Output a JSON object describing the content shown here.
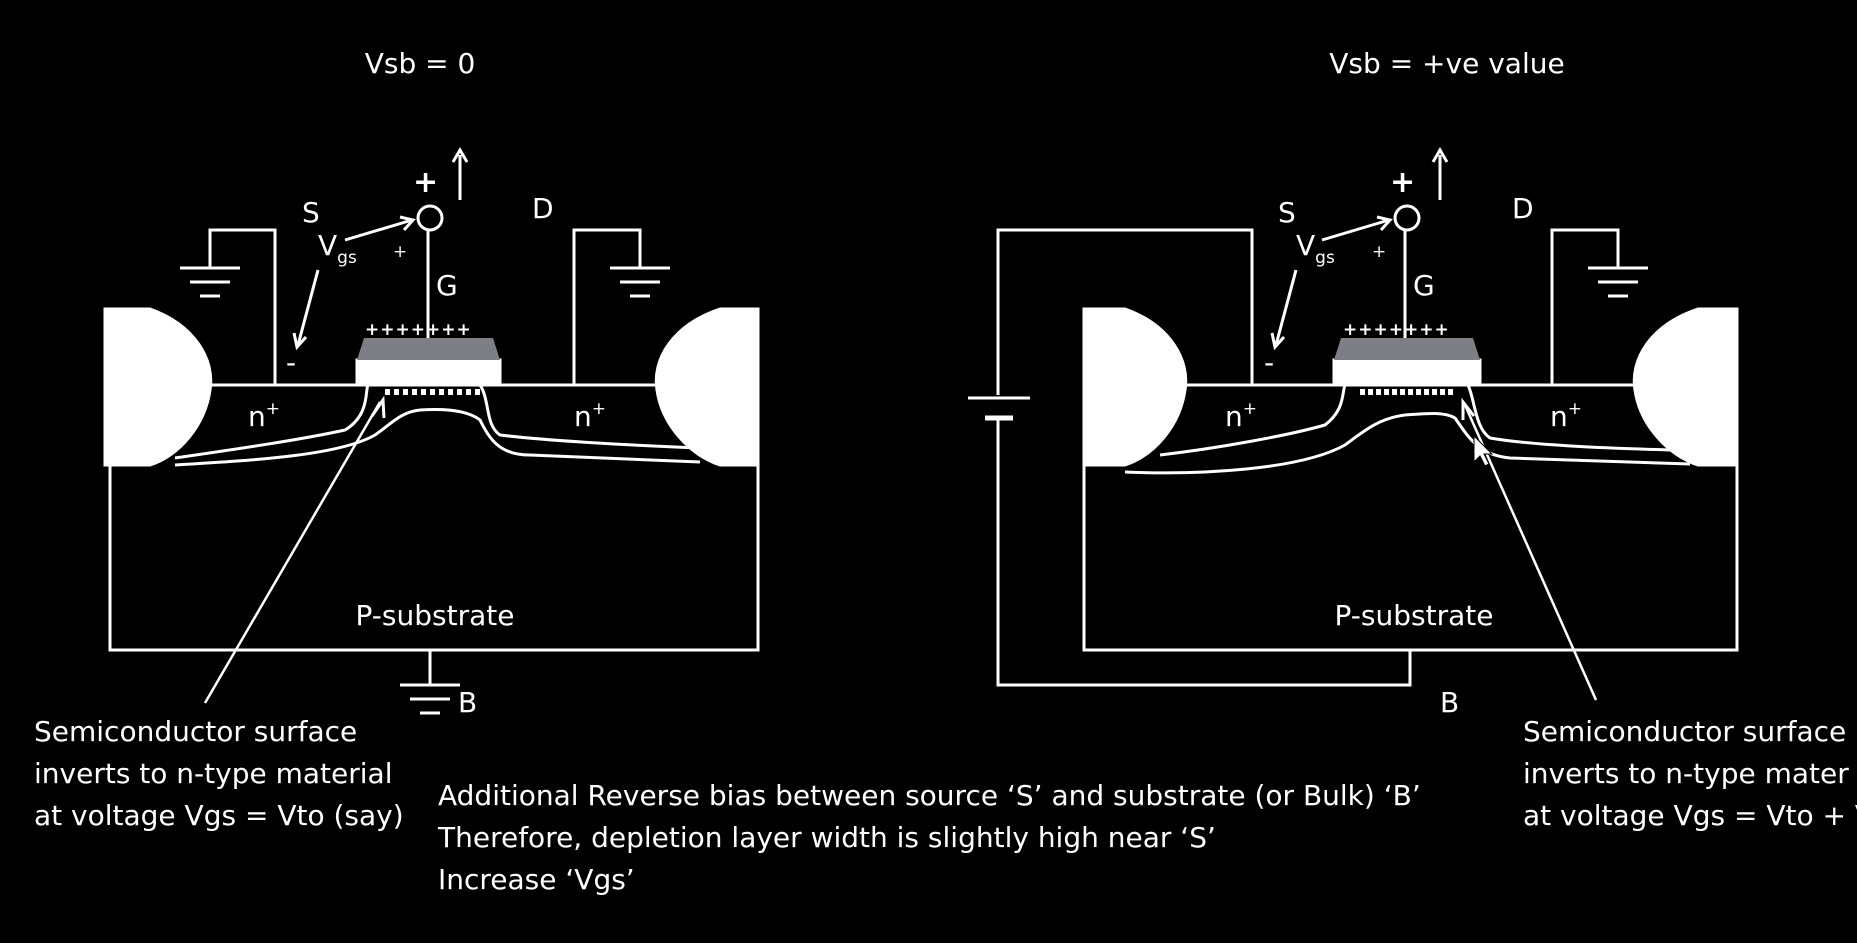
{
  "colors": {
    "background": "#000000",
    "line": "#ffffff",
    "gate": "#7d7f85"
  },
  "left": {
    "title": "Vsb = 0",
    "source": "S",
    "drain": "D",
    "gate": "G",
    "body": "B",
    "vgs_main": "V",
    "vgs_sub": "gs",
    "plus_big": "+",
    "plus_small": "+",
    "minus": "-",
    "gate_charges": "+++++++",
    "n_left": "n",
    "n_right": "n",
    "n_sup": "+",
    "substrate": "P-substrate",
    "note": [
      "Semiconductor surface",
      "inverts to n-type material",
      "at voltage Vgs = Vto (say)"
    ]
  },
  "right": {
    "title": "Vsb = +ve value",
    "source": "S",
    "drain": "D",
    "gate": "G",
    "body": "B",
    "vgs_main": "V",
    "vgs_sub": "gs",
    "plus_big": "+",
    "plus_small": "+",
    "minus": "-",
    "gate_charges": "+++++++",
    "n_left": "n",
    "n_right": "n",
    "n_sup": "+",
    "substrate": "P-substrate",
    "note": [
      "Semiconductor surface",
      "inverts to n-type mater",
      "at voltage Vgs = Vto + V"
    ]
  },
  "middle_note": [
    "Additional Reverse bias between source ‘S’ and substrate (or Bulk) ‘B’",
    "Therefore, depletion layer width is slightly high near ‘S’",
    "Increase ‘Vgs’"
  ]
}
